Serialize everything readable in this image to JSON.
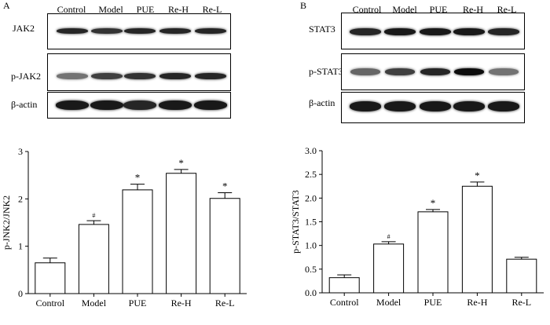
{
  "panels": [
    {
      "letter": "A",
      "lanes": [
        "Control",
        "Model",
        "PUE",
        "Re-H",
        "Re-L"
      ],
      "blots": [
        {
          "label": "JAK2",
          "intensity": [
            0.85,
            0.8,
            0.85,
            0.85,
            0.85
          ]
        },
        {
          "label": "p-JAK2",
          "intensity": [
            0.55,
            0.75,
            0.8,
            0.85,
            0.85
          ]
        },
        {
          "label": "β-actin",
          "intensity": [
            0.9,
            0.9,
            0.85,
            0.9,
            0.9
          ]
        }
      ]
    },
    {
      "letter": "B",
      "lanes": [
        "Control",
        "Model",
        "PUE",
        "Re-H",
        "Re-L"
      ],
      "blots": [
        {
          "label": "STAT3",
          "intensity": [
            0.85,
            0.9,
            0.9,
            0.9,
            0.85
          ]
        },
        {
          "label": "p-STAT3",
          "intensity": [
            0.6,
            0.75,
            0.85,
            0.95,
            0.55
          ]
        },
        {
          "label": "β-actin",
          "intensity": [
            0.9,
            0.9,
            0.9,
            0.9,
            0.9
          ]
        }
      ]
    }
  ],
  "chart_data": [
    {
      "type": "bar",
      "categories": [
        "Control",
        "Model",
        "PUE",
        "Re-H",
        "Re-L"
      ],
      "values": [
        0.65,
        1.46,
        2.19,
        2.54,
        2.01
      ],
      "errors": [
        0.1,
        0.08,
        0.12,
        0.08,
        0.12
      ],
      "markers": [
        "",
        "#",
        "*",
        "*",
        "*"
      ],
      "ylabel": "p-JNK2/JNK2",
      "ylim": [
        0,
        3
      ],
      "yticks": [
        0,
        1,
        2,
        3
      ],
      "yticklabels": [
        "0",
        "1",
        "2",
        "3"
      ]
    },
    {
      "type": "bar",
      "categories": [
        "Control",
        "Model",
        "PUE",
        "Re-H",
        "Re-L"
      ],
      "values": [
        0.32,
        1.03,
        1.71,
        2.25,
        0.71
      ],
      "errors": [
        0.06,
        0.05,
        0.05,
        0.09,
        0.04
      ],
      "markers": [
        "",
        "#",
        "*",
        "*",
        ""
      ],
      "ylabel": "p-STAT3/STAT3",
      "ylim": [
        0,
        3.0
      ],
      "yticks": [
        0,
        0.5,
        1.0,
        1.5,
        2.0,
        2.5,
        3.0
      ],
      "yticklabels": [
        "0.0",
        "0.5",
        "1.0",
        "1.5",
        "2.0",
        "2.5",
        "3.0"
      ]
    }
  ]
}
